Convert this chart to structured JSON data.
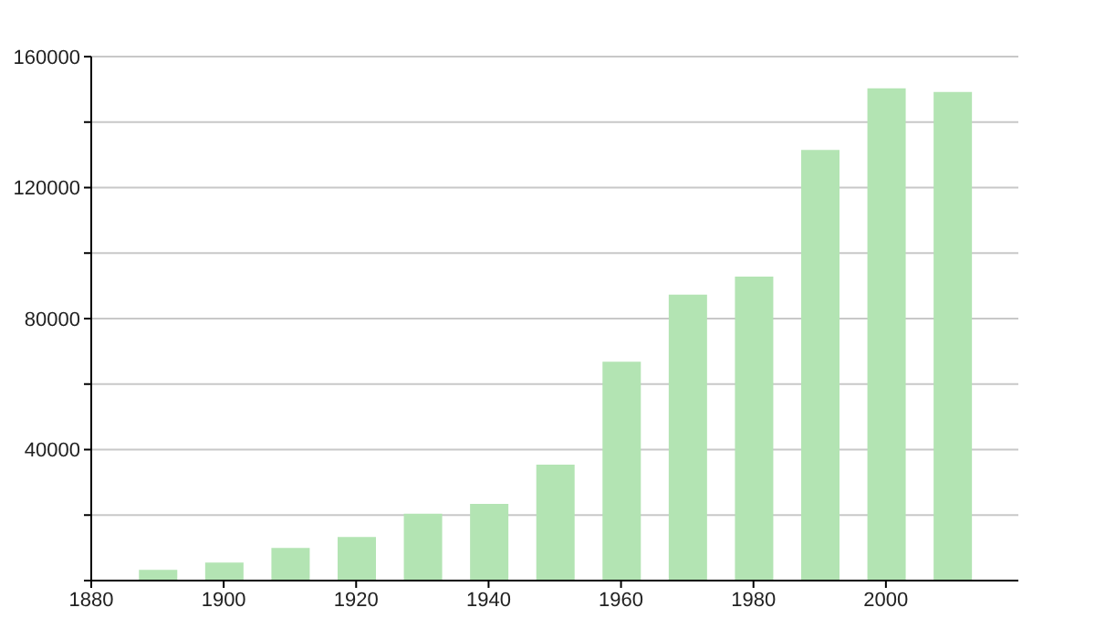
{
  "chart_data": {
    "type": "bar",
    "x": [
      1890,
      1900,
      1910,
      1920,
      1930,
      1940,
      1950,
      1960,
      1970,
      1980,
      1990,
      2000,
      2010
    ],
    "values": [
      3300,
      5500,
      10000,
      13300,
      20400,
      23400,
      35400,
      66800,
      87300,
      92800,
      131500,
      150300,
      149200
    ],
    "color": "#b3e4b3",
    "xlim": [
      1880,
      2020
    ],
    "xticks": [
      1880,
      1900,
      1920,
      1940,
      1960,
      1980,
      2000
    ],
    "ylim": [
      0,
      160000
    ],
    "yticks": [
      {
        "value": 0,
        "label": null
      },
      {
        "value": 20000,
        "label": null
      },
      40000,
      {
        "value": 60000,
        "label": null
      },
      80000,
      {
        "value": 100000,
        "label": null
      },
      120000,
      {
        "value": 140000,
        "label": null
      },
      160000
    ],
    "grid": "y"
  }
}
